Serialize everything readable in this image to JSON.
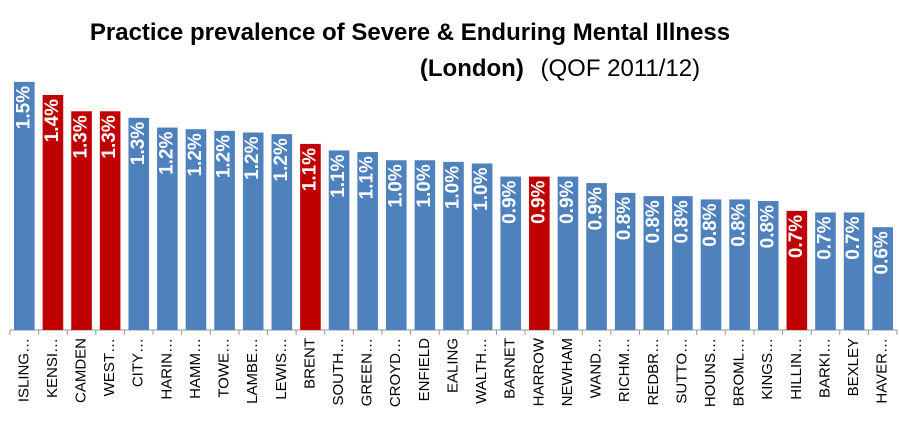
{
  "chart_data": {
    "type": "bar",
    "title": [
      "Practice prevalence of Severe & Enduring Mental Illness",
      "(London)"
    ],
    "subtitle": "(QOF 2011/12)",
    "categories": [
      "ISLING…",
      "KENSI…",
      "CAMDEN",
      "WEST…",
      "CITY…",
      "HARIN…",
      "HAMM…",
      "TOWE…",
      "LAMBE…",
      "LEWIS…",
      "BRENT",
      "SOUTH…",
      "GREEN…",
      "CROYD…",
      "ENFIELD",
      "EALING",
      "WALTH…",
      "BARNET",
      "HARROW",
      "NEWHAM",
      "WAND…",
      "RICHM…",
      "REDBR…",
      "SUTTO…",
      "HOUNS…",
      "BROML…",
      "KINGS…",
      "HILLIN…",
      "BARKI…",
      "BEXLEY",
      "HAVER…"
    ],
    "values": [
      1.52,
      1.44,
      1.34,
      1.34,
      1.3,
      1.24,
      1.23,
      1.22,
      1.21,
      1.2,
      1.14,
      1.1,
      1.09,
      1.04,
      1.04,
      1.03,
      1.02,
      0.94,
      0.94,
      0.94,
      0.9,
      0.84,
      0.82,
      0.82,
      0.8,
      0.8,
      0.79,
      0.73,
      0.72,
      0.72,
      0.63
    ],
    "value_labels": [
      "1.5%",
      "1.4%",
      "1.3%",
      "1.3%",
      "1.3%",
      "1.2%",
      "1.2%",
      "1.2%",
      "1.2%",
      "1.2%",
      "1.1%",
      "1.1%",
      "1.1%",
      "1.0%",
      "1.0%",
      "1.0%",
      "1.0%",
      "0.9%",
      "0.9%",
      "0.9%",
      "0.9%",
      "0.8%",
      "0.8%",
      "0.8%",
      "0.8%",
      "0.8%",
      "0.8%",
      "0.7%",
      "0.7%",
      "0.7%",
      "0.6%"
    ],
    "colors": [
      "#4f81bd",
      "#c00000",
      "#c00000",
      "#c00000",
      "#4f81bd",
      "#4f81bd",
      "#4f81bd",
      "#4f81bd",
      "#4f81bd",
      "#4f81bd",
      "#c00000",
      "#4f81bd",
      "#4f81bd",
      "#4f81bd",
      "#4f81bd",
      "#4f81bd",
      "#4f81bd",
      "#4f81bd",
      "#c00000",
      "#4f81bd",
      "#4f81bd",
      "#4f81bd",
      "#4f81bd",
      "#4f81bd",
      "#4f81bd",
      "#4f81bd",
      "#4f81bd",
      "#c00000",
      "#4f81bd",
      "#4f81bd",
      "#4f81bd"
    ],
    "ylim": [
      0,
      1.55
    ]
  }
}
